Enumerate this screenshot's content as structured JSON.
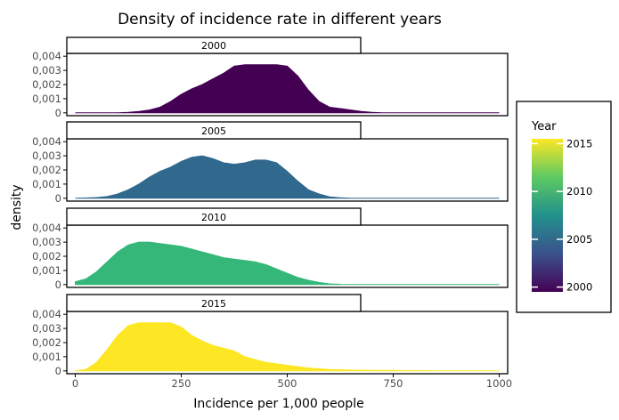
{
  "chart_data": {
    "type": "area",
    "title": "Density of incidence rate in different years",
    "xlabel": "Incidence per 1,000 people",
    "ylabel": "density",
    "xlim": [
      -20,
      1020
    ],
    "ylim": [
      -0.0002,
      0.0042
    ],
    "x_ticks": [
      0,
      250,
      500,
      750,
      1000
    ],
    "x_tick_labels": [
      "0",
      "250",
      "500",
      "750",
      "1000"
    ],
    "y_ticks": [
      0,
      0.001,
      0.002,
      0.003,
      0.004
    ],
    "y_tick_labels": [
      "0",
      "0,001",
      "0,002",
      "0,003",
      "0,004"
    ],
    "grid": false,
    "legend": {
      "title": "Year",
      "position": "right",
      "type": "colorbar",
      "labels": [
        "2015",
        "2010",
        "2005",
        "2000"
      ],
      "values": [
        2015,
        2010,
        2005,
        2000
      ],
      "range": [
        1999.5,
        2015.5
      ],
      "gradient_colors": [
        "#440154",
        "#3b528b",
        "#21918c",
        "#5ec962",
        "#fde725"
      ]
    },
    "x": [
      0,
      25,
      50,
      75,
      100,
      125,
      150,
      175,
      200,
      225,
      250,
      275,
      300,
      325,
      350,
      375,
      400,
      425,
      450,
      475,
      500,
      525,
      550,
      575,
      600,
      625,
      650,
      675,
      700,
      725,
      750,
      775,
      800,
      825,
      850,
      875,
      900,
      925,
      950,
      975,
      1000
    ],
    "series": [
      {
        "name": "2000",
        "color": "#440154",
        "values": [
          0,
          0,
          0,
          0,
          1e-05,
          4e-05,
          0.0001,
          0.0002,
          0.0004,
          0.0008,
          0.0013,
          0.0017,
          0.002,
          0.0024,
          0.0028,
          0.0033,
          0.0034,
          0.0034,
          0.0034,
          0.0034,
          0.0033,
          0.0026,
          0.0016,
          0.0008,
          0.0004,
          0.0003,
          0.0002,
          0.0001,
          4e-05,
          1e-05,
          0,
          0,
          0,
          0,
          0,
          0,
          0,
          0,
          0,
          0,
          0
        ]
      },
      {
        "name": "2005",
        "color": "#31688e",
        "values": [
          0,
          2e-05,
          5e-05,
          0.00012,
          0.0003,
          0.0006,
          0.001,
          0.0015,
          0.0019,
          0.0022,
          0.0026,
          0.0029,
          0.003,
          0.0028,
          0.0025,
          0.0024,
          0.0025,
          0.0027,
          0.0027,
          0.0025,
          0.0019,
          0.0012,
          0.0006,
          0.0003,
          0.0001,
          4e-05,
          1e-05,
          0,
          0,
          0,
          0,
          0,
          0,
          0,
          0,
          0,
          0,
          0,
          0,
          0,
          0
        ]
      },
      {
        "name": "2010",
        "color": "#35b779",
        "values": [
          0.0002,
          0.0004,
          0.0009,
          0.0016,
          0.0023,
          0.0028,
          0.003,
          0.003,
          0.0029,
          0.0028,
          0.0027,
          0.0025,
          0.0023,
          0.0021,
          0.0019,
          0.0018,
          0.0017,
          0.0016,
          0.0014,
          0.0011,
          0.0008,
          0.0005,
          0.0003,
          0.00015,
          5e-05,
          2e-05,
          1e-05,
          0,
          0,
          0,
          0,
          0,
          0,
          0,
          0,
          0,
          0,
          0,
          0,
          0,
          0
        ]
      },
      {
        "name": "2015",
        "color": "#fde725",
        "values": [
          0,
          0.0001,
          0.0006,
          0.0015,
          0.0025,
          0.0032,
          0.0034,
          0.0034,
          0.0034,
          0.0034,
          0.0031,
          0.0025,
          0.0021,
          0.0018,
          0.0016,
          0.0014,
          0.001,
          0.0008,
          0.0006,
          0.0005,
          0.0004,
          0.0003,
          0.0002,
          0.00015,
          0.0001,
          8e-05,
          6e-05,
          5e-05,
          4e-05,
          3e-05,
          3e-05,
          2e-05,
          2e-05,
          2e-05,
          1e-05,
          1e-05,
          1e-05,
          1e-05,
          0,
          0,
          0
        ]
      }
    ]
  }
}
